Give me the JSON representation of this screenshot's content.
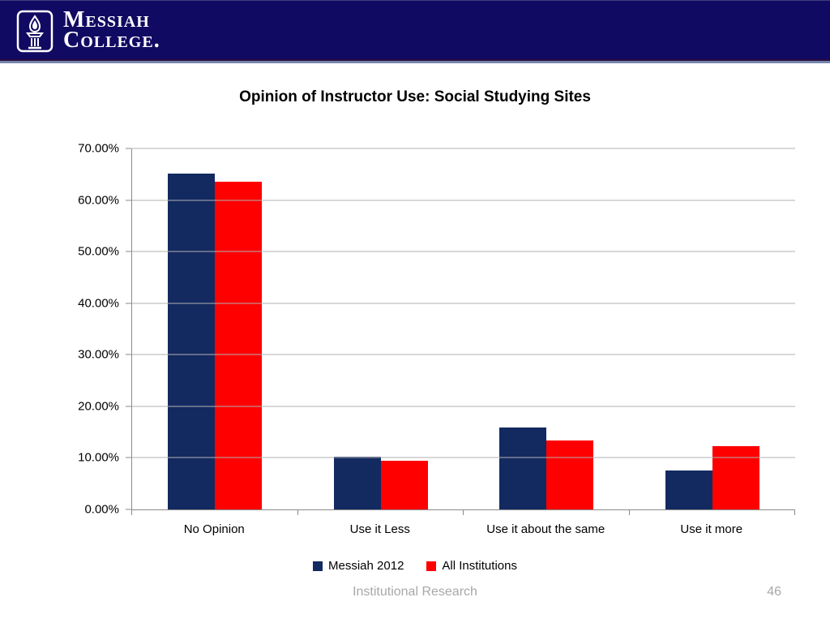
{
  "header": {
    "logo": {
      "line1": "Messiah",
      "line2": "College."
    },
    "bg_color": "#110a62"
  },
  "title": "Opinion of Instructor Use: Social Studying Sites",
  "chart_data": {
    "type": "bar",
    "title": "Opinion of Instructor Use: Social Studying Sites",
    "categories": [
      "No Opinion",
      "Use it Less",
      "Use it about the same",
      "Use it more"
    ],
    "series": [
      {
        "name": "Messiah 2012",
        "color": "#132a60",
        "values": [
          65.2,
          10.2,
          15.9,
          7.6
        ]
      },
      {
        "name": "All Institutions",
        "color": "#fe0000",
        "values": [
          63.5,
          9.5,
          13.4,
          12.2
        ]
      }
    ],
    "xlabel": "",
    "ylabel": "",
    "ylim": [
      0,
      70
    ],
    "ytick_step": 10,
    "yticks": [
      "0.00%",
      "10.00%",
      "20.00%",
      "30.00%",
      "40.00%",
      "50.00%",
      "60.00%",
      "70.00%"
    ],
    "grid": true,
    "legend_position": "bottom"
  },
  "footer": {
    "text": "Institutional Research",
    "page_number": "46"
  }
}
